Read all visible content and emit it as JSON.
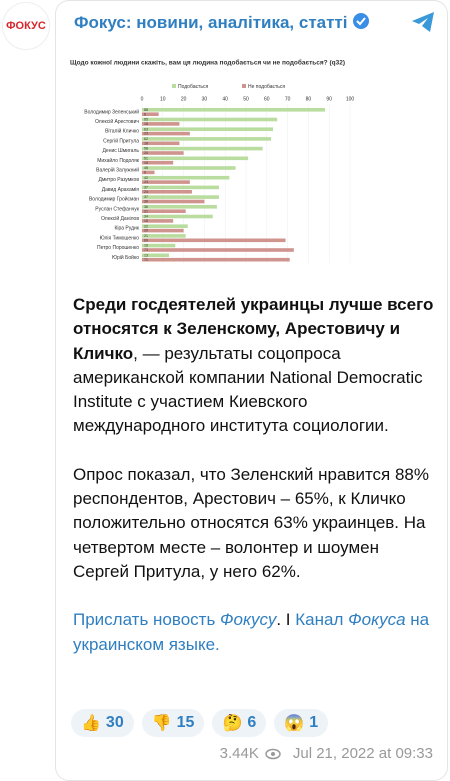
{
  "header": {
    "avatar": "ФОКУС",
    "channel": "Фокус: новини, аналітика, статті"
  },
  "chart_data": {
    "type": "bar",
    "orientation": "horizontal",
    "title": "Щодо кожної людини скажіть, вам ця людина подобається чи не подобається? (q32)",
    "categories": [
      "Володимир Зеленський",
      "Олексій Арестович",
      "Віталій Кличко",
      "Сергій Притула",
      "Денис Шмигаль",
      "Михайло Подоляк",
      "Валерій Залужний",
      "Дмитро Разумков",
      "Давид Арахамія",
      "Володимир Гройсман",
      "Руслан Стефанчук",
      "Олексій Данілов",
      "Кіра Рудик",
      "Юлія Тимошенко",
      "Петро Порошенко",
      "Юрій Бойко"
    ],
    "series": [
      {
        "name": "Подобається",
        "color": "#b9dc9f",
        "values": [
          88,
          65,
          63,
          62,
          58,
          51,
          45,
          42,
          37,
          37,
          36,
          34,
          22,
          21,
          16,
          13
        ]
      },
      {
        "name": "Не подобається",
        "color": "#cf948e",
        "values": [
          8,
          18,
          23,
          18,
          20,
          15,
          6,
          23,
          24,
          30,
          21,
          15,
          20,
          69,
          73,
          71
        ]
      }
    ],
    "xlim": [
      0,
      100
    ],
    "xticks": [
      0,
      10,
      20,
      30,
      40,
      50,
      60,
      70,
      80,
      90,
      100
    ],
    "legend": "top"
  },
  "post": {
    "paragraphs": [
      [
        {
          "text": "Среди госдеятелей украинцы лучше всего относятся к Зеленскому, Арестовичу и Кличко",
          "style": "bold"
        },
        {
          "text": ", — результаты соцопроса американской компании National Democratic Institute с участием Киевского международного института социологии."
        }
      ],
      [
        {
          "text": "Опрос показал, что Зеленский нравится 88% респондентов, Арестович – 65%, к Кличко положительно относятся 63% украинцев. На четвертом месте – волонтер и шоумен Сергей Притула, у него 62%."
        }
      ],
      [
        {
          "text": "Прислать новость ",
          "style": "link"
        },
        {
          "text": "Фокусу",
          "style": "link-italic"
        },
        {
          "text": ". I "
        },
        {
          "text": "Канал ",
          "style": "link"
        },
        {
          "text": "Фокуса",
          "style": "link-italic"
        },
        {
          "text": " на украинском языке.",
          "style": "link"
        }
      ]
    ],
    "reactions": [
      {
        "emoji": "👍",
        "count": 30
      },
      {
        "emoji": "👎",
        "count": 15
      },
      {
        "emoji": "🤔",
        "count": 6
      },
      {
        "emoji": "😱",
        "count": 1
      }
    ],
    "views": "3.44K",
    "date": "Jul 21, 2022 at 09:33"
  }
}
